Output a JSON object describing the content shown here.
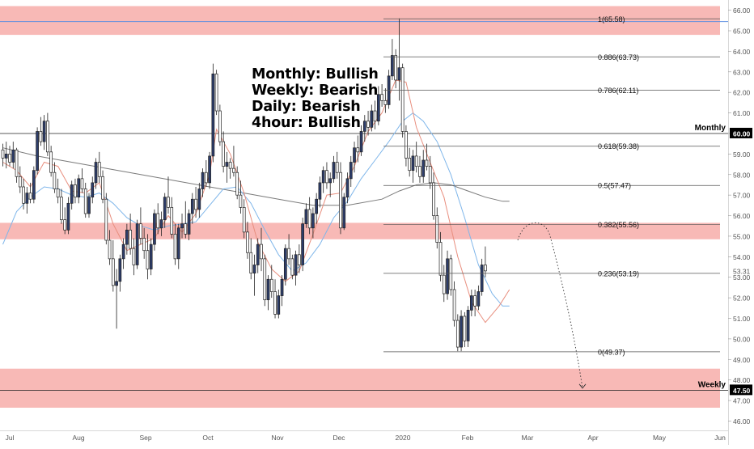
{
  "chart_data": {
    "type": "candlestick",
    "instrument_hint": "daily price chart",
    "x_ticks": [
      "Jul",
      "Aug",
      "Sep",
      "Oct",
      "Nov",
      "Dec",
      "2020",
      "Feb",
      "Mar",
      "Apr",
      "May",
      "Jun"
    ],
    "y_ticks": [
      "66.00",
      "65.00",
      "64.00",
      "63.00",
      "62.00",
      "61.00",
      "60.00",
      "59.00",
      "58.00",
      "57.00",
      "56.00",
      "55.00",
      "54.00",
      "53.00",
      "52.00",
      "51.00",
      "50.00",
      "49.00",
      "48.00",
      "47.00",
      "46.00"
    ],
    "ylim": [
      45.9,
      66.3
    ],
    "price_label": "53.31",
    "annotations": [
      "Monthly: Bullish",
      "Weekly: Bearish",
      "Daily: Bearish",
      "4hour: Bullish"
    ],
    "levels": [
      {
        "label": "Monthly",
        "value": 60.0,
        "tag": "60.00"
      },
      {
        "label": "Weekly",
        "value": 47.5,
        "tag": "47.50"
      }
    ],
    "horizontal_line_value": 65.45,
    "zones": [
      {
        "from": 64.8,
        "to": 66.2
      },
      {
        "from": 54.85,
        "to": 55.65
      },
      {
        "from": 46.65,
        "to": 48.55
      }
    ],
    "fibonacci": [
      {
        "label": "1(65.58)",
        "value": 65.58
      },
      {
        "label": "0.886(63.73)",
        "value": 63.73
      },
      {
        "label": "0.786(62.11)",
        "value": 62.11
      },
      {
        "label": "0.618(59.38)",
        "value": 59.38
      },
      {
        "label": "0.5(57.47)",
        "value": 57.47
      },
      {
        "label": "0.382(55.56)",
        "value": 55.56
      },
      {
        "label": "0.236(53.19)",
        "value": 53.19
      },
      {
        "label": "0(49.37)",
        "value": 49.37
      }
    ],
    "projection": [
      [
        54.8,
        55.5
      ],
      [
        55.0,
        55.4
      ],
      [
        53.5,
        51.0
      ],
      [
        47.6,
        47.6
      ]
    ],
    "candles": [
      [
        59.2,
        59.5,
        58.4,
        58.8
      ],
      [
        58.8,
        59.6,
        58.3,
        59.0
      ],
      [
        59.0,
        59.4,
        58.4,
        58.6
      ],
      [
        58.6,
        59.6,
        58.3,
        59.2
      ],
      [
        59.2,
        59.3,
        57.6,
        57.9
      ],
      [
        57.9,
        58.4,
        57.1,
        57.4
      ],
      [
        57.4,
        57.8,
        56.3,
        56.6
      ],
      [
        56.6,
        57.4,
        56.1,
        57.1
      ],
      [
        57.1,
        57.6,
        56.6,
        56.8
      ],
      [
        56.8,
        58.4,
        56.6,
        58.2
      ],
      [
        58.2,
        60.3,
        58.0,
        60.1
      ],
      [
        60.1,
        60.8,
        59.4,
        59.6
      ],
      [
        59.6,
        60.9,
        59.2,
        60.6
      ],
      [
        60.6,
        61.0,
        58.9,
        59.1
      ],
      [
        59.1,
        59.4,
        57.9,
        58.1
      ],
      [
        58.1,
        58.6,
        57.1,
        57.3
      ],
      [
        57.3,
        57.8,
        56.6,
        56.9
      ],
      [
        56.9,
        57.3,
        55.6,
        55.8
      ],
      [
        55.8,
        56.4,
        55.1,
        55.3
      ],
      [
        55.3,
        56.9,
        55.1,
        56.6
      ],
      [
        56.6,
        57.7,
        56.3,
        57.5
      ],
      [
        57.5,
        57.8,
        56.6,
        56.9
      ],
      [
        56.9,
        58.0,
        56.6,
        57.8
      ],
      [
        57.8,
        58.3,
        57.1,
        57.3
      ],
      [
        57.3,
        57.6,
        55.9,
        56.1
      ],
      [
        56.1,
        57.1,
        55.9,
        56.9
      ],
      [
        56.9,
        57.9,
        56.6,
        57.6
      ],
      [
        57.6,
        58.8,
        57.3,
        58.6
      ],
      [
        58.6,
        59.1,
        57.6,
        57.9
      ],
      [
        57.9,
        58.2,
        56.6,
        56.8
      ],
      [
        56.8,
        57.1,
        54.6,
        54.8
      ],
      [
        54.8,
        55.3,
        53.6,
        53.9
      ],
      [
        53.9,
        54.8,
        52.3,
        52.6
      ],
      [
        52.6,
        53.4,
        50.5,
        52.8
      ],
      [
        52.8,
        54.1,
        52.3,
        53.9
      ],
      [
        53.9,
        54.9,
        53.4,
        54.6
      ],
      [
        54.6,
        55.6,
        54.1,
        55.3
      ],
      [
        55.3,
        56.1,
        54.1,
        54.4
      ],
      [
        54.4,
        54.9,
        53.1,
        53.6
      ],
      [
        53.6,
        55.8,
        53.4,
        55.6
      ],
      [
        55.6,
        56.4,
        54.6,
        54.9
      ],
      [
        54.9,
        55.4,
        53.9,
        54.3
      ],
      [
        54.3,
        55.1,
        52.9,
        53.4
      ],
      [
        53.4,
        54.9,
        53.1,
        54.6
      ],
      [
        54.6,
        56.3,
        54.3,
        56.1
      ],
      [
        56.1,
        56.6,
        55.1,
        55.4
      ],
      [
        55.4,
        56.2,
        55.0,
        55.8
      ],
      [
        55.8,
        57.1,
        55.4,
        56.9
      ],
      [
        56.9,
        57.9,
        56.1,
        56.4
      ],
      [
        56.4,
        56.9,
        54.9,
        55.1
      ],
      [
        55.1,
        55.6,
        53.6,
        53.9
      ],
      [
        53.9,
        55.6,
        53.4,
        55.4
      ],
      [
        55.4,
        56.1,
        54.9,
        55.6
      ],
      [
        55.6,
        56.7,
        54.9,
        55.1
      ],
      [
        55.1,
        56.3,
        54.8,
        56.1
      ],
      [
        56.1,
        57.1,
        55.6,
        56.8
      ],
      [
        56.8,
        57.4,
        55.9,
        56.3
      ],
      [
        56.3,
        57.6,
        55.9,
        57.3
      ],
      [
        57.3,
        58.3,
        56.9,
        58.1
      ],
      [
        58.1,
        58.7,
        57.4,
        57.6
      ],
      [
        57.6,
        59.1,
        57.3,
        58.9
      ],
      [
        58.9,
        63.4,
        58.6,
        62.9
      ],
      [
        62.9,
        63.1,
        60.9,
        61.1
      ],
      [
        61.1,
        61.4,
        59.4,
        59.6
      ],
      [
        59.6,
        60.1,
        58.1,
        58.4
      ],
      [
        58.4,
        59.1,
        57.6,
        58.6
      ],
      [
        58.6,
        58.8,
        57.8,
        58.3
      ],
      [
        58.3,
        59.4,
        57.9,
        58.1
      ],
      [
        58.1,
        58.4,
        56.8,
        57.0
      ],
      [
        57.0,
        57.7,
        56.1,
        56.4
      ],
      [
        56.4,
        56.8,
        54.9,
        55.2
      ],
      [
        55.2,
        55.7,
        53.9,
        54.2
      ],
      [
        54.2,
        54.9,
        52.9,
        53.2
      ],
      [
        53.2,
        54.1,
        52.1,
        53.6
      ],
      [
        53.6,
        54.9,
        53.2,
        54.6
      ],
      [
        54.6,
        55.4,
        53.3,
        53.9
      ],
      [
        53.9,
        54.1,
        51.6,
        51.9
      ],
      [
        51.9,
        53.1,
        51.4,
        52.9
      ],
      [
        52.9,
        53.6,
        52.0,
        52.3
      ],
      [
        52.3,
        52.9,
        51.0,
        51.2
      ],
      [
        51.2,
        52.4,
        51.0,
        52.1
      ],
      [
        52.1,
        53.1,
        51.6,
        52.9
      ],
      [
        52.9,
        54.6,
        52.6,
        54.4
      ],
      [
        54.4,
        55.1,
        53.6,
        53.9
      ],
      [
        53.9,
        54.1,
        52.9,
        53.1
      ],
      [
        53.1,
        54.3,
        52.6,
        54.1
      ],
      [
        54.1,
        54.6,
        53.2,
        53.6
      ],
      [
        53.6,
        55.9,
        53.3,
        55.6
      ],
      [
        55.6,
        56.6,
        55.4,
        56.3
      ],
      [
        56.3,
        56.9,
        55.1,
        55.4
      ],
      [
        55.4,
        56.4,
        54.9,
        56.1
      ],
      [
        56.1,
        57.1,
        55.6,
        56.8
      ],
      [
        56.8,
        57.9,
        56.4,
        57.6
      ],
      [
        57.6,
        58.4,
        57.1,
        58.2
      ],
      [
        58.2,
        58.6,
        57.3,
        57.6
      ],
      [
        57.6,
        58.1,
        56.9,
        57.8
      ],
      [
        57.8,
        58.9,
        57.6,
        58.6
      ],
      [
        58.6,
        59.1,
        57.8,
        58.1
      ],
      [
        58.1,
        58.6,
        55.1,
        55.4
      ],
      [
        55.4,
        57.1,
        55.3,
        56.9
      ],
      [
        56.9,
        58.1,
        56.6,
        57.8
      ],
      [
        57.8,
        58.9,
        57.4,
        58.6
      ],
      [
        58.6,
        59.6,
        58.1,
        59.3
      ],
      [
        59.3,
        59.9,
        58.6,
        59.1
      ],
      [
        59.1,
        60.4,
        58.9,
        60.1
      ],
      [
        60.1,
        60.9,
        59.6,
        60.6
      ],
      [
        60.6,
        61.1,
        59.9,
        60.3
      ],
      [
        60.3,
        61.4,
        60.1,
        61.1
      ],
      [
        61.1,
        61.6,
        60.2,
        60.6
      ],
      [
        60.6,
        62.3,
        60.4,
        61.9
      ],
      [
        61.9,
        62.4,
        61.3,
        61.6
      ],
      [
        61.6,
        62.2,
        61.0,
        61.4
      ],
      [
        61.4,
        63.1,
        61.2,
        62.8
      ],
      [
        62.8,
        64.6,
        62.6,
        63.8
      ],
      [
        63.8,
        64.1,
        62.2,
        62.6
      ],
      [
        62.6,
        65.6,
        61.6,
        63.2
      ],
      [
        63.2,
        63.4,
        59.8,
        60.1
      ],
      [
        60.1,
        60.4,
        58.4,
        58.8
      ],
      [
        58.8,
        59.3,
        57.9,
        58.2
      ],
      [
        58.2,
        59.2,
        57.6,
        58.9
      ],
      [
        58.9,
        59.6,
        58.1,
        58.4
      ],
      [
        58.4,
        58.9,
        57.6,
        57.9
      ],
      [
        57.9,
        59.2,
        57.6,
        58.7
      ],
      [
        58.7,
        59.5,
        58.2,
        58.4
      ],
      [
        58.4,
        58.9,
        57.3,
        57.6
      ],
      [
        57.6,
        58.1,
        55.8,
        56.0
      ],
      [
        56.0,
        56.4,
        54.4,
        54.7
      ],
      [
        54.7,
        55.2,
        52.8,
        53.1
      ],
      [
        53.1,
        53.6,
        51.8,
        52.2
      ],
      [
        52.2,
        54.3,
        51.9,
        53.9
      ],
      [
        53.9,
        54.1,
        52.1,
        52.4
      ],
      [
        52.4,
        52.8,
        50.6,
        50.9
      ],
      [
        50.9,
        51.2,
        49.4,
        49.6
      ],
      [
        49.6,
        51.4,
        49.4,
        51.1
      ],
      [
        51.1,
        51.3,
        49.6,
        49.9
      ],
      [
        49.9,
        51.6,
        49.6,
        51.4
      ],
      [
        51.4,
        52.4,
        51.1,
        52.1
      ],
      [
        52.1,
        52.4,
        51.1,
        51.6
      ],
      [
        51.6,
        52.6,
        51.4,
        52.3
      ],
      [
        52.3,
        53.9,
        52.1,
        53.6
      ],
      [
        53.6,
        54.5,
        53.0,
        53.31
      ]
    ],
    "ema_short": [
      [
        0,
        58.6
      ],
      [
        4,
        58.2
      ],
      [
        8,
        57.4
      ],
      [
        12,
        58.6
      ],
      [
        16,
        58.4
      ],
      [
        20,
        57.2
      ],
      [
        24,
        57.1
      ],
      [
        28,
        57.6
      ],
      [
        32,
        55.6
      ],
      [
        36,
        54.3
      ],
      [
        40,
        54.6
      ],
      [
        44,
        54.9
      ],
      [
        48,
        56.0
      ],
      [
        52,
        55.2
      ],
      [
        56,
        56.1
      ],
      [
        60,
        58.0
      ],
      [
        62,
        60.2
      ],
      [
        66,
        59.0
      ],
      [
        70,
        57.1
      ],
      [
        74,
        54.7
      ],
      [
        78,
        53.4
      ],
      [
        82,
        52.8
      ],
      [
        86,
        53.3
      ],
      [
        90,
        55.1
      ],
      [
        94,
        57.0
      ],
      [
        98,
        57.1
      ],
      [
        102,
        58.4
      ],
      [
        106,
        60.1
      ],
      [
        110,
        61.0
      ],
      [
        114,
        62.6
      ],
      [
        117,
        62.5
      ],
      [
        120,
        60.3
      ],
      [
        124,
        58.6
      ],
      [
        128,
        56.9
      ],
      [
        132,
        54.0
      ],
      [
        136,
        51.8
      ],
      [
        140,
        50.8
      ],
      [
        144,
        51.6
      ],
      [
        147,
        52.4
      ]
    ],
    "ema_long": [
      [
        0,
        54.6
      ],
      [
        4,
        56.2
      ],
      [
        8,
        56.9
      ],
      [
        12,
        57.4
      ],
      [
        16,
        57.3
      ],
      [
        20,
        57.0
      ],
      [
        24,
        56.9
      ],
      [
        28,
        57.1
      ],
      [
        32,
        56.6
      ],
      [
        36,
        55.9
      ],
      [
        40,
        55.5
      ],
      [
        44,
        55.3
      ],
      [
        48,
        55.5
      ],
      [
        52,
        55.6
      ],
      [
        56,
        55.7
      ],
      [
        60,
        56.5
      ],
      [
        64,
        57.3
      ],
      [
        68,
        57.4
      ],
      [
        72,
        56.6
      ],
      [
        76,
        55.3
      ],
      [
        80,
        54.1
      ],
      [
        84,
        53.3
      ],
      [
        88,
        53.7
      ],
      [
        92,
        54.6
      ],
      [
        96,
        55.9
      ],
      [
        100,
        56.7
      ],
      [
        104,
        57.8
      ],
      [
        108,
        58.7
      ],
      [
        112,
        59.6
      ],
      [
        116,
        60.6
      ],
      [
        119,
        61.0
      ],
      [
        122,
        60.6
      ],
      [
        126,
        59.6
      ],
      [
        130,
        58.0
      ],
      [
        134,
        55.9
      ],
      [
        138,
        53.6
      ],
      [
        142,
        52.2
      ],
      [
        145,
        51.6
      ],
      [
        147,
        51.6
      ]
    ],
    "sma_slow": [
      [
        0,
        59.3
      ],
      [
        10,
        58.9
      ],
      [
        20,
        58.6
      ],
      [
        30,
        58.3
      ],
      [
        40,
        58.0
      ],
      [
        50,
        57.7
      ],
      [
        60,
        57.4
      ],
      [
        70,
        57.1
      ],
      [
        80,
        56.8
      ],
      [
        90,
        56.5
      ],
      [
        100,
        56.5
      ],
      [
        110,
        56.8
      ],
      [
        115,
        57.2
      ],
      [
        120,
        57.5
      ],
      [
        125,
        57.6
      ],
      [
        130,
        57.5
      ],
      [
        135,
        57.2
      ],
      [
        140,
        56.9
      ],
      [
        145,
        56.7
      ],
      [
        147,
        56.7
      ]
    ],
    "colors": {
      "up_candle": "#2d3d6b",
      "down_candle": "#ffffff",
      "zone": "#f8b9b6",
      "ema_short": "#e88e7e",
      "ema_long": "#7fb6ea",
      "sma_slow": "#7a7a7a",
      "resistance_line": "#5b8ee0",
      "tag": "#000000"
    }
  }
}
